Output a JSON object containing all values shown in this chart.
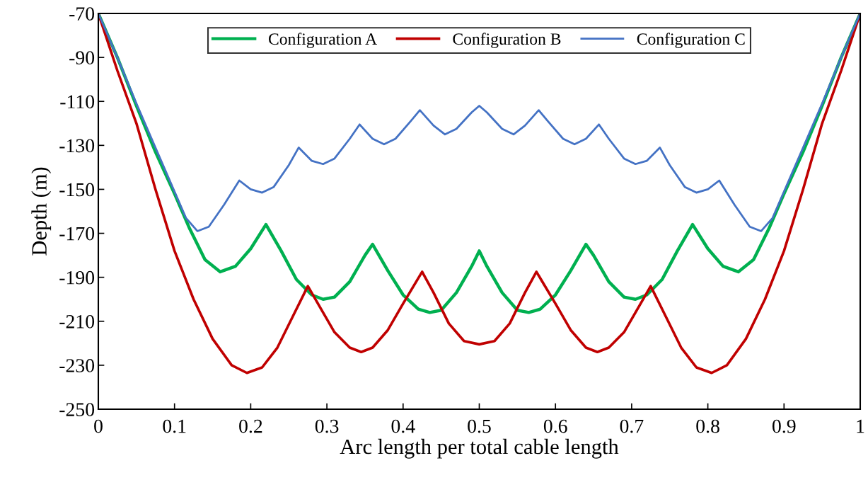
{
  "chart_data": {
    "type": "line",
    "xlabel": "Arc length per total cable length",
    "ylabel": "Depth (m)",
    "xlim": [
      0,
      1
    ],
    "xticks": [
      0,
      0.1,
      0.2,
      0.3,
      0.4,
      0.5,
      0.6,
      0.7,
      0.8,
      0.9,
      1
    ],
    "ylim": [
      -250,
      -70
    ],
    "yticks": [
      -250,
      -230,
      -210,
      -190,
      -170,
      -150,
      -130,
      -110,
      -90,
      -70
    ],
    "grid": false,
    "legend": "top",
    "marker": "none",
    "line_style": "solid",
    "series": [
      {
        "name": "Configuration A",
        "color": "#00b050",
        "x": [
          0,
          0.025,
          0.05,
          0.075,
          0.1,
          0.12,
          0.14,
          0.16,
          0.18,
          0.2,
          0.22,
          0.24,
          0.26,
          0.28,
          0.295,
          0.31,
          0.33,
          0.35,
          0.36,
          0.38,
          0.4,
          0.42,
          0.435,
          0.45,
          0.47,
          0.49,
          0.5,
          0.51,
          0.53,
          0.55,
          0.565,
          0.58,
          0.6,
          0.62,
          0.64,
          0.65,
          0.67,
          0.69,
          0.705,
          0.72,
          0.74,
          0.76,
          0.78,
          0.8,
          0.82,
          0.84,
          0.86,
          0.88,
          0.9,
          0.925,
          0.95,
          0.975,
          1
        ],
        "values": [
          -70,
          -90,
          -112,
          -133,
          -152,
          -168,
          -182,
          -187.5,
          -185,
          -177,
          -166,
          -178,
          -191,
          -198,
          -200,
          -199,
          -192,
          -180,
          -175,
          -187,
          -198,
          -204.5,
          -206,
          -205,
          -197,
          -185,
          -178,
          -185,
          -197,
          -205,
          -206,
          -204.5,
          -198,
          -187,
          -175,
          -180,
          -192,
          -199,
          -200,
          -198,
          -191,
          -178,
          -166,
          -177,
          -185,
          -187.5,
          -182,
          -168,
          -152,
          -133,
          -112,
          -90,
          -70
        ]
      },
      {
        "name": "Configuration B",
        "color": "#c00000",
        "x": [
          0,
          0.025,
          0.05,
          0.075,
          0.1,
          0.125,
          0.15,
          0.175,
          0.195,
          0.215,
          0.235,
          0.255,
          0.275,
          0.29,
          0.31,
          0.33,
          0.345,
          0.36,
          0.38,
          0.4,
          0.425,
          0.44,
          0.46,
          0.48,
          0.5,
          0.52,
          0.54,
          0.56,
          0.575,
          0.6,
          0.62,
          0.64,
          0.655,
          0.67,
          0.69,
          0.71,
          0.725,
          0.745,
          0.765,
          0.785,
          0.805,
          0.825,
          0.85,
          0.875,
          0.9,
          0.925,
          0.95,
          0.975,
          1
        ],
        "values": [
          -70,
          -96,
          -120,
          -150,
          -178,
          -200,
          -218,
          -230,
          -233.5,
          -231,
          -222,
          -208,
          -194,
          -203,
          -215,
          -222,
          -224,
          -222,
          -214,
          -202,
          -187.5,
          -197,
          -211,
          -219,
          -220.5,
          -219,
          -211,
          -197,
          -187.5,
          -202,
          -214,
          -222,
          -224,
          -222,
          -215,
          -203,
          -194,
          -208,
          -222,
          -231,
          -233.5,
          -230,
          -218,
          -200,
          -178,
          -150,
          -120,
          -96,
          -70
        ]
      },
      {
        "name": "Configuration C",
        "color": "#4472c4",
        "x": [
          0,
          0.025,
          0.05,
          0.075,
          0.1,
          0.115,
          0.13,
          0.145,
          0.165,
          0.185,
          0.2,
          0.215,
          0.23,
          0.25,
          0.263,
          0.28,
          0.295,
          0.31,
          0.33,
          0.343,
          0.36,
          0.375,
          0.39,
          0.41,
          0.422,
          0.44,
          0.455,
          0.47,
          0.49,
          0.5,
          0.51,
          0.53,
          0.545,
          0.56,
          0.578,
          0.59,
          0.61,
          0.625,
          0.64,
          0.657,
          0.67,
          0.69,
          0.705,
          0.72,
          0.737,
          0.75,
          0.77,
          0.785,
          0.8,
          0.815,
          0.835,
          0.855,
          0.87,
          0.885,
          0.9,
          0.925,
          0.95,
          0.975,
          1
        ],
        "values": [
          -70,
          -90,
          -111,
          -131,
          -151,
          -163,
          -169,
          -167,
          -157,
          -146,
          -150,
          -151.5,
          -149,
          -139,
          -131,
          -137,
          -138.5,
          -136,
          -127,
          -120.5,
          -127,
          -129.5,
          -127,
          -119,
          -114,
          -121,
          -125,
          -122.5,
          -115,
          -112,
          -115,
          -122.5,
          -125,
          -121,
          -114,
          -119,
          -127,
          -129.5,
          -127,
          -120.5,
          -127,
          -136,
          -138.5,
          -137,
          -131,
          -139,
          -149,
          -151.5,
          -150,
          -146,
          -157,
          -167,
          -169,
          -163,
          -151,
          -131,
          -111,
          -90,
          -70
        ]
      }
    ]
  }
}
